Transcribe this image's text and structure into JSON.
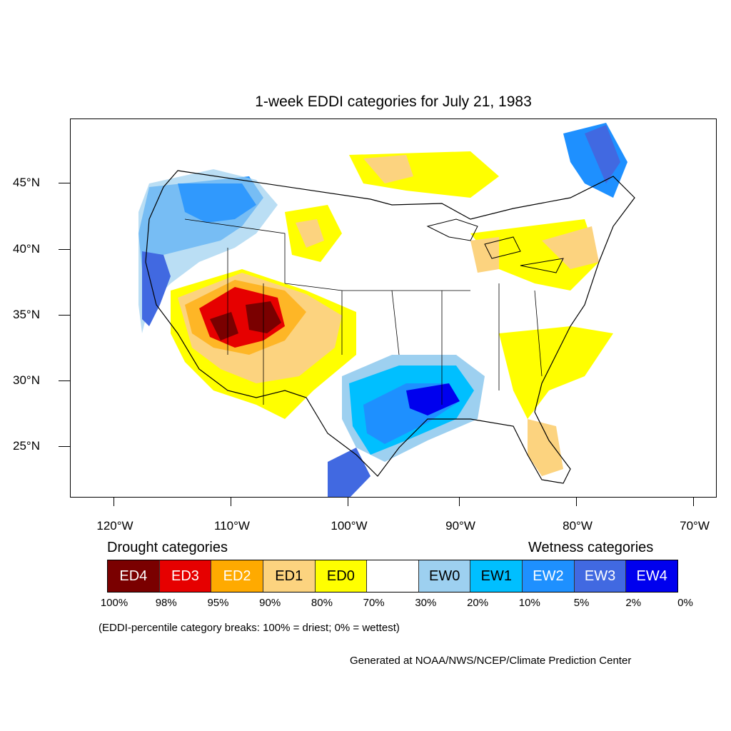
{
  "title": "1-week EDDI categories for July 21, 1983",
  "map": {
    "lat_labels": [
      "45°N",
      "40°N",
      "35°N",
      "30°N",
      "25°N"
    ],
    "lon_labels": [
      "120°W",
      "110°W",
      "100°W",
      "90°W",
      "80°W",
      "70°W"
    ]
  },
  "legend": {
    "drought_heading": "Drought categories",
    "wetness_heading": "Wetness categories",
    "categories": [
      {
        "label": "ED4",
        "color": "#7a0000",
        "text_color": "#ffffff"
      },
      {
        "label": "ED3",
        "color": "#e60000",
        "text_color": "#ffffff"
      },
      {
        "label": "ED2",
        "color": "#ffaa00",
        "text_color": "#ffffff"
      },
      {
        "label": "ED1",
        "color": "#fcd37f",
        "text_color": "#000000"
      },
      {
        "label": "ED0",
        "color": "#ffff00",
        "text_color": "#000000"
      },
      {
        "label": "",
        "color": "#ffffff",
        "text_color": "#000000"
      },
      {
        "label": "EW0",
        "color": "#9dd0f0",
        "text_color": "#000000"
      },
      {
        "label": "EW1",
        "color": "#00bfff",
        "text_color": "#000000"
      },
      {
        "label": "EW2",
        "color": "#1e90ff",
        "text_color": "#ffffff"
      },
      {
        "label": "EW3",
        "color": "#4169e1",
        "text_color": "#ffffff"
      },
      {
        "label": "EW4",
        "color": "#0000ee",
        "text_color": "#ffffff"
      }
    ],
    "percentiles": [
      "100%",
      "98%",
      "95%",
      "90%",
      "80%",
      "70%",
      "30%",
      "20%",
      "10%",
      "5%",
      "2%",
      "0%"
    ],
    "note": "(EDDI-percentile category breaks: 100% = driest; 0% = wettest)"
  },
  "credit": "Generated at NOAA/NWS/NCEP/Climate Prediction Center"
}
